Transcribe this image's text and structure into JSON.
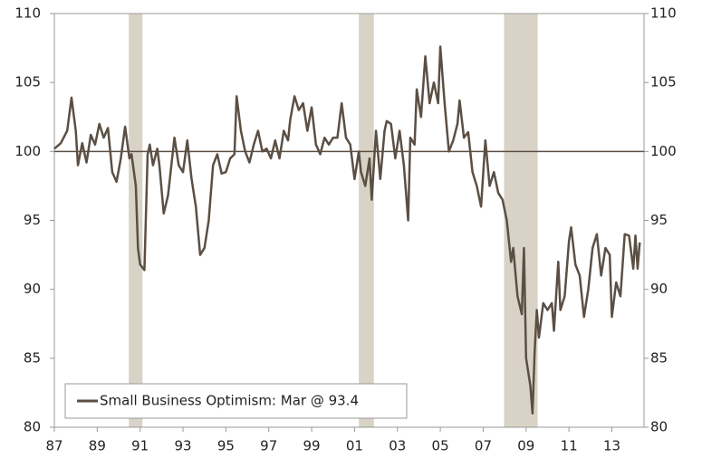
{
  "chart_data": {
    "type": "line",
    "x": [
      1987.0,
      1987.3,
      1987.6,
      1987.8,
      1988.0,
      1988.1,
      1988.3,
      1988.5,
      1988.7,
      1988.9,
      1989.1,
      1989.3,
      1989.5,
      1989.7,
      1989.9,
      1990.1,
      1990.3,
      1990.5,
      1990.6,
      1990.8,
      1990.9,
      1991.0,
      1991.2,
      1991.35,
      1991.45,
      1991.6,
      1991.8,
      1991.9,
      1992.1,
      1992.3,
      1992.6,
      1992.8,
      1993.0,
      1993.2,
      1993.4,
      1993.6,
      1993.8,
      1994.0,
      1994.2,
      1994.4,
      1994.6,
      1994.8,
      1995.0,
      1995.2,
      1995.4,
      1995.5,
      1995.7,
      1995.9,
      1996.1,
      1996.3,
      1996.5,
      1996.7,
      1996.9,
      1997.1,
      1997.3,
      1997.5,
      1997.7,
      1997.9,
      1998.0,
      1998.2,
      1998.4,
      1998.6,
      1998.8,
      1999.0,
      1999.2,
      1999.4,
      1999.6,
      1999.8,
      2000.0,
      2000.2,
      2000.4,
      2000.6,
      2000.8,
      2001.0,
      2001.2,
      2001.3,
      2001.5,
      2001.7,
      2001.8,
      2002.0,
      2002.2,
      2002.4,
      2002.5,
      2002.7,
      2002.9,
      2003.1,
      2003.3,
      2003.5,
      2003.6,
      2003.8,
      2003.9,
      2004.1,
      2004.3,
      2004.5,
      2004.7,
      2004.9,
      2005.0,
      2005.2,
      2005.4,
      2005.6,
      2005.8,
      2005.9,
      2006.1,
      2006.3,
      2006.5,
      2006.7,
      2006.9,
      2007.1,
      2007.3,
      2007.5,
      2007.7,
      2007.9,
      2008.1,
      2008.3,
      2008.4,
      2008.6,
      2008.8,
      2008.9,
      2009.0,
      2009.2,
      2009.3,
      2009.4,
      2009.5,
      2009.6,
      2009.8,
      2010.0,
      2010.2,
      2010.3,
      2010.5,
      2010.6,
      2010.8,
      2011.0,
      2011.1,
      2011.3,
      2011.5,
      2011.7,
      2011.9,
      2012.1,
      2012.3,
      2012.5,
      2012.7,
      2012.9,
      2013.0,
      2013.2,
      2013.4,
      2013.6,
      2013.8,
      2014.0,
      2014.1,
      2014.2,
      2014.3
    ],
    "series": [
      {
        "name": "Small Business Optimism: Mar @ 93.4",
        "color": "#5b4f44",
        "values": [
          100.2,
          100.6,
          101.5,
          103.9,
          101.5,
          99.0,
          100.6,
          99.2,
          101.2,
          100.5,
          102.0,
          101.0,
          101.7,
          98.5,
          97.8,
          99.5,
          101.8,
          99.5,
          99.8,
          97.5,
          93.0,
          91.8,
          91.4,
          99.8,
          100.5,
          99.0,
          100.2,
          99.0,
          95.5,
          96.8,
          101.0,
          99.0,
          98.5,
          100.8,
          98.0,
          96.0,
          92.5,
          93.0,
          95.0,
          99.0,
          99.8,
          98.4,
          98.5,
          99.5,
          99.8,
          104.0,
          101.5,
          100.0,
          99.2,
          100.5,
          101.5,
          100.0,
          100.2,
          99.5,
          100.8,
          99.5,
          101.5,
          100.8,
          102.3,
          104.0,
          103.0,
          103.5,
          101.5,
          103.2,
          100.5,
          99.8,
          101.0,
          100.5,
          101.0,
          101.0,
          103.5,
          101.0,
          100.5,
          98.0,
          100.0,
          98.5,
          97.5,
          99.5,
          96.5,
          101.5,
          98.0,
          101.5,
          102.2,
          102.0,
          99.5,
          101.5,
          99.0,
          95.0,
          101.0,
          100.5,
          104.5,
          102.5,
          106.9,
          103.5,
          105.0,
          103.5,
          107.6,
          103.5,
          100.0,
          100.8,
          102.0,
          103.7,
          101.0,
          101.4,
          98.5,
          97.5,
          96.0,
          100.8,
          97.5,
          98.5,
          97.0,
          96.5,
          95.0,
          92.0,
          93.0,
          89.5,
          88.2,
          93.0,
          85.0,
          83.0,
          81.0,
          85.5,
          88.5,
          86.5,
          89.0,
          88.5,
          89.0,
          87.0,
          92.0,
          88.5,
          89.5,
          93.5,
          94.5,
          91.8,
          91.0,
          88.0,
          90.0,
          93.0,
          94.0,
          91.0,
          93.0,
          92.5,
          88.0,
          90.5,
          89.5,
          94.0,
          93.9,
          91.5,
          93.9,
          91.5,
          93.4
        ]
      }
    ],
    "xlim": [
      1987.0,
      2014.5
    ],
    "xticks": [
      {
        "value": 1987,
        "label": "87"
      },
      {
        "value": 1989,
        "label": "89"
      },
      {
        "value": 1991,
        "label": "91"
      },
      {
        "value": 1993,
        "label": "93"
      },
      {
        "value": 1995,
        "label": "95"
      },
      {
        "value": 1997,
        "label": "97"
      },
      {
        "value": 1999,
        "label": "99"
      },
      {
        "value": 2001,
        "label": "01"
      },
      {
        "value": 2003,
        "label": "03"
      },
      {
        "value": 2005,
        "label": "05"
      },
      {
        "value": 2007,
        "label": "07"
      },
      {
        "value": 2009,
        "label": "09"
      },
      {
        "value": 2011,
        "label": "11"
      },
      {
        "value": 2013,
        "label": "13"
      }
    ],
    "ylim": [
      80,
      110
    ],
    "yticks": [
      80,
      85,
      90,
      95,
      100,
      105,
      110
    ],
    "y2lim": [
      80,
      110
    ],
    "y2ticks": [
      80,
      85,
      90,
      95,
      100,
      105,
      110
    ],
    "reference_line": 100,
    "shaded_ranges": [
      [
        1990.47,
        1991.11
      ],
      [
        2001.2,
        2001.9
      ],
      [
        2007.97,
        2009.54
      ]
    ],
    "shade_color": "#d8d3c6"
  }
}
